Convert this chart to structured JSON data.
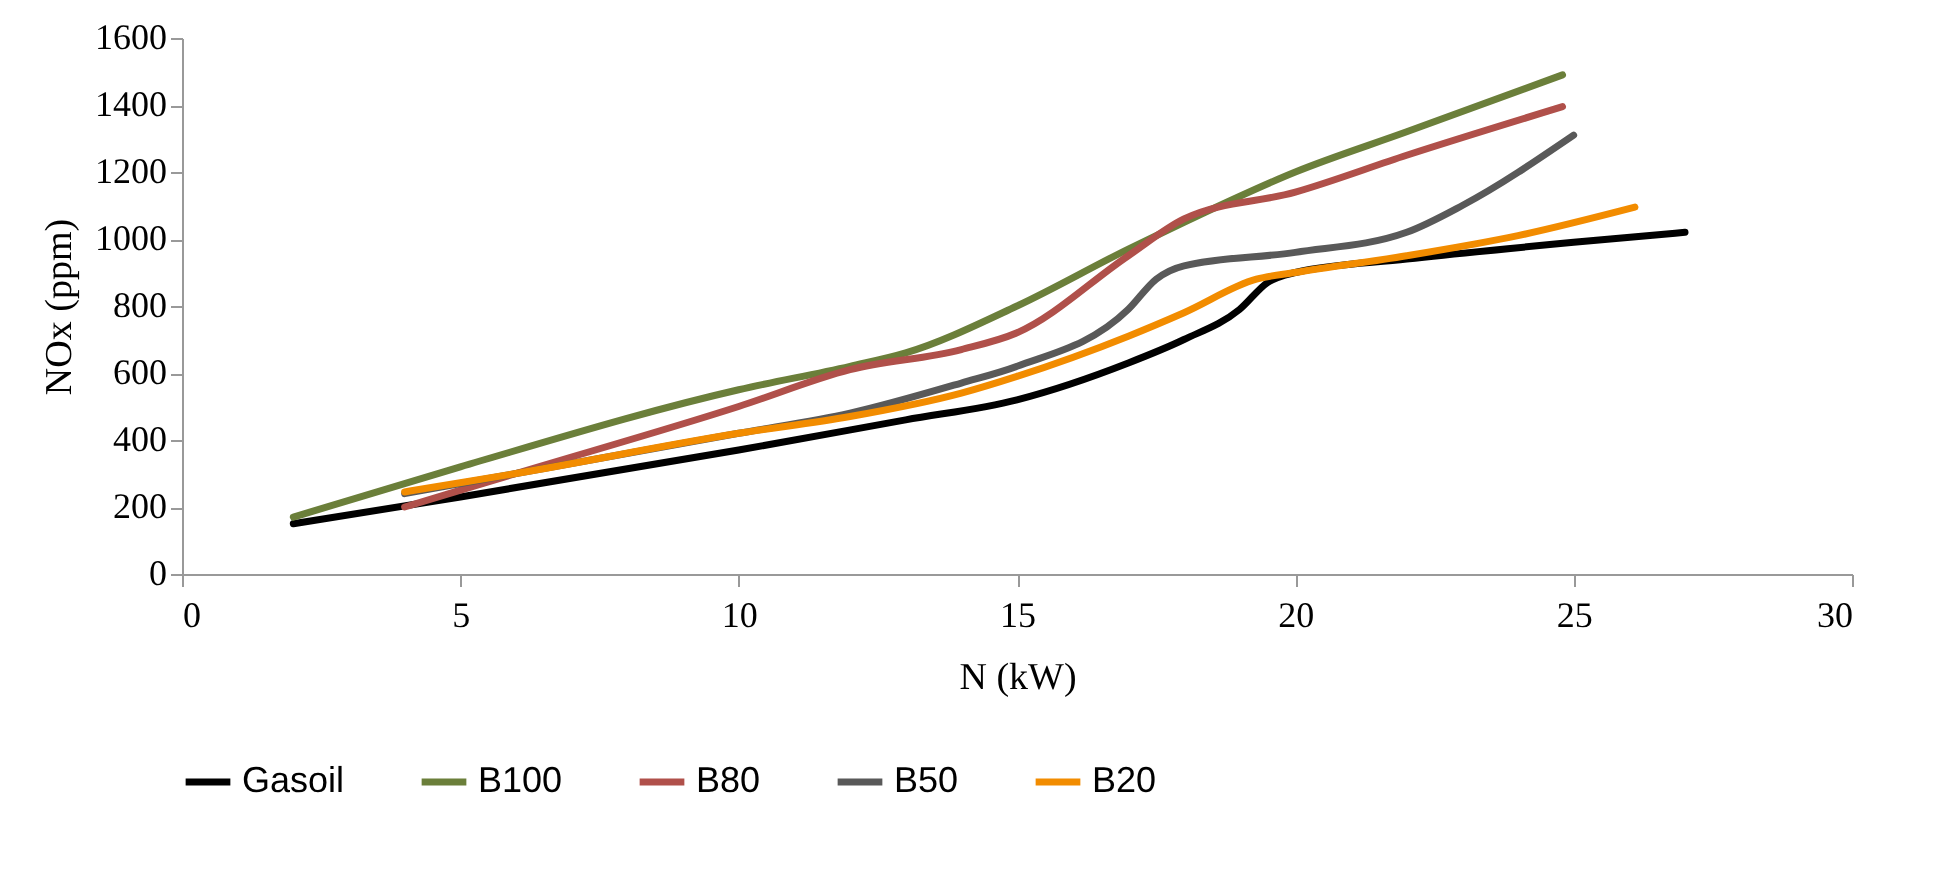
{
  "chart_data": {
    "type": "line",
    "xlabel": "N (kW)",
    "ylabel": "NOx (ppm)",
    "xlim": [
      0,
      30
    ],
    "xticks": [
      0,
      5,
      10,
      15,
      20,
      25,
      30
    ],
    "ylim": [
      0,
      1600
    ],
    "yticks": [
      0,
      200,
      400,
      600,
      800,
      1000,
      1200,
      1400,
      1600
    ],
    "grid": false,
    "legend": "bottom",
    "line_style": "solid",
    "marker": "none",
    "series": [
      {
        "name": "Gasoil",
        "color": "#000000",
        "x": [
          2,
          5,
          10,
          13,
          15,
          17,
          18,
          19,
          19.5,
          20,
          22,
          25,
          27
        ],
        "values": [
          150,
          230,
          370,
          460,
          520,
          630,
          700,
          790,
          870,
          900,
          940,
          990,
          1020
        ]
      },
      {
        "name": "B100",
        "color": "#6b7f3a",
        "x": [
          2,
          5,
          10,
          12,
          13,
          15,
          17,
          18,
          20,
          22,
          24.8
        ],
        "values": [
          170,
          320,
          550,
          620,
          660,
          800,
          970,
          1050,
          1200,
          1320,
          1490
        ]
      },
      {
        "name": "B80",
        "color": "#b0504a",
        "x": [
          4,
          6,
          10,
          12,
          14,
          15,
          17,
          18,
          20,
          22,
          24.8
        ],
        "values": [
          200,
          300,
          500,
          610,
          670,
          720,
          950,
          1060,
          1140,
          1250,
          1395
        ]
      },
      {
        "name": "B50",
        "color": "#595959",
        "x": [
          4,
          6,
          10,
          12,
          14,
          15,
          17,
          17.5,
          18,
          20,
          22,
          23,
          25
        ],
        "values": [
          240,
          300,
          420,
          480,
          570,
          620,
          790,
          880,
          920,
          960,
          1020,
          1100,
          1310
        ]
      },
      {
        "name": "B20",
        "color": "#f28c00",
        "x": [
          4,
          6,
          10,
          12,
          14,
          15,
          17,
          18,
          19.3,
          20,
          22,
          24,
          26.1
        ],
        "values": [
          245,
          300,
          420,
          470,
          540,
          590,
          710,
          780,
          880,
          900,
          950,
          1010,
          1095
        ]
      }
    ]
  }
}
